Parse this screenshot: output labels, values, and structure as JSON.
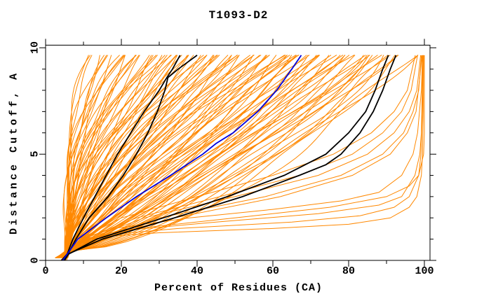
{
  "chart_data": {
    "type": "line",
    "title": "T1093-D2",
    "xlabel": "Percent of Residues (CA)",
    "ylabel": "Distance Cutoff, A",
    "xlim": [
      0,
      100
    ],
    "ylim": [
      0,
      10
    ],
    "x_major_ticks": [
      0,
      20,
      40,
      60,
      80,
      100
    ],
    "x_minor_tick_step": 10,
    "y_major_ticks": [
      0,
      5,
      10
    ],
    "y_minor_tick_step": 1,
    "grid": false,
    "legend": false,
    "tick_style": "outward, mirrored on all four frame sides",
    "colors": {
      "ensemble": "#ff8800",
      "highlight": "#000000",
      "reference": "#0000dd",
      "frame": "#000000",
      "background": "#ffffff"
    },
    "reference_curve": {
      "name": "reference-model-blue",
      "points_d_p": [
        [
          0,
          4.5
        ],
        [
          0.3,
          5.7
        ],
        [
          1,
          8.5
        ],
        [
          2,
          16
        ],
        [
          3,
          24
        ],
        [
          4,
          33
        ],
        [
          5,
          41.5
        ],
        [
          5.5,
          45
        ],
        [
          6,
          49.5
        ],
        [
          7,
          56
        ],
        [
          8,
          61
        ],
        [
          9,
          65
        ],
        [
          9.65,
          67.5
        ]
      ]
    },
    "highlight_curves": [
      {
        "name": "black-model-1",
        "points_d_p": [
          [
            0,
            4.2
          ],
          [
            0.3,
            5.7
          ],
          [
            1,
            7.2
          ],
          [
            2,
            10
          ],
          [
            3,
            13
          ],
          [
            4,
            16
          ],
          [
            5,
            19
          ],
          [
            6,
            22.5
          ],
          [
            7,
            26
          ],
          [
            8,
            30
          ],
          [
            8.6,
            32
          ],
          [
            9,
            33.5
          ],
          [
            9.65,
            35.5
          ]
        ]
      },
      {
        "name": "black-model-2",
        "points_d_p": [
          [
            0,
            4.8
          ],
          [
            0.3,
            5.9
          ],
          [
            1,
            8
          ],
          [
            2,
            11.5
          ],
          [
            3,
            16.5
          ],
          [
            4,
            20.5
          ],
          [
            5,
            24
          ],
          [
            6,
            27
          ],
          [
            7,
            29.5
          ],
          [
            8,
            31.5
          ],
          [
            8.6,
            32.3
          ],
          [
            9,
            35
          ],
          [
            9.65,
            40
          ]
        ]
      },
      {
        "name": "black-model-3",
        "points_d_p": [
          [
            0,
            4.5
          ],
          [
            0.3,
            5.9
          ],
          [
            1,
            15
          ],
          [
            2,
            34
          ],
          [
            3,
            52
          ],
          [
            4,
            67
          ],
          [
            4.5,
            74
          ],
          [
            5,
            78
          ],
          [
            6,
            83
          ],
          [
            7,
            86.5
          ],
          [
            8,
            89
          ],
          [
            9,
            91
          ],
          [
            9.65,
            92.5
          ]
        ]
      },
      {
        "name": "black-model-4",
        "points_d_p": [
          [
            0,
            5
          ],
          [
            0.3,
            6.1
          ],
          [
            1,
            13.5
          ],
          [
            2,
            31
          ],
          [
            3,
            48
          ],
          [
            4,
            63
          ],
          [
            5,
            74
          ],
          [
            6,
            80
          ],
          [
            7,
            84.5
          ],
          [
            8,
            87
          ],
          [
            9,
            89
          ],
          [
            9.65,
            90.5
          ]
        ]
      }
    ],
    "special_curves": [
      {
        "name": "best-model-1",
        "points_d_p": [
          [
            0,
            4
          ],
          [
            0.3,
            5.8
          ],
          [
            0.8,
            8
          ],
          [
            1.1,
            14
          ],
          [
            1.3,
            30
          ],
          [
            1.5,
            60
          ],
          [
            1.7,
            80
          ],
          [
            2,
            91
          ],
          [
            2.5,
            96
          ],
          [
            3,
            98
          ],
          [
            4,
            99.2
          ],
          [
            5,
            99.5
          ],
          [
            7,
            99.7
          ],
          [
            9.65,
            99.8
          ]
        ]
      },
      {
        "name": "best-model-2",
        "points_d_p": [
          [
            0,
            4.5
          ],
          [
            0.3,
            5.9
          ],
          [
            0.9,
            9
          ],
          [
            1.2,
            16
          ],
          [
            1.5,
            35
          ],
          [
            1.8,
            65
          ],
          [
            2.1,
            83
          ],
          [
            2.5,
            92
          ],
          [
            3,
            96
          ],
          [
            4,
            98.5
          ],
          [
            5,
            99.1
          ],
          [
            7,
            99.5
          ],
          [
            9.65,
            99.7
          ]
        ]
      },
      {
        "name": "best-model-3",
        "points_d_p": [
          [
            0,
            5
          ],
          [
            0.3,
            6.1
          ],
          [
            1,
            10
          ],
          [
            1.4,
            20
          ],
          [
            1.8,
            45
          ],
          [
            2.2,
            72
          ],
          [
            2.6,
            88
          ],
          [
            3,
            94
          ],
          [
            4,
            97.5
          ],
          [
            5,
            98.8
          ],
          [
            6,
            99.2
          ],
          [
            9.65,
            99.6
          ]
        ]
      },
      {
        "name": "best-model-4",
        "points_d_p": [
          [
            0,
            4.2
          ],
          [
            0.3,
            5.7
          ],
          [
            1,
            9
          ],
          [
            1.5,
            18
          ],
          [
            2,
            38
          ],
          [
            2.4,
            60
          ],
          [
            2.8,
            78
          ],
          [
            3.2,
            88
          ],
          [
            4,
            94
          ],
          [
            5,
            97
          ],
          [
            6,
            98.2
          ],
          [
            8,
            99.2
          ],
          [
            9.65,
            99.5
          ]
        ]
      },
      {
        "name": "best-model-5",
        "points_d_p": [
          [
            0,
            5.2
          ],
          [
            0.3,
            6
          ],
          [
            1,
            11
          ],
          [
            1.5,
            24
          ],
          [
            2,
            50
          ],
          [
            2.5,
            75
          ],
          [
            3,
            90
          ],
          [
            3.5,
            96
          ],
          [
            4,
            98.5
          ],
          [
            5,
            99.8
          ],
          [
            6,
            100
          ],
          [
            9.65,
            100
          ]
        ]
      },
      {
        "name": "good-model-1",
        "points_d_p": [
          [
            0,
            4
          ],
          [
            0.3,
            5.8
          ],
          [
            1,
            12
          ],
          [
            2,
            30
          ],
          [
            3,
            58
          ],
          [
            4,
            78
          ],
          [
            5,
            89
          ],
          [
            6,
            94.5
          ],
          [
            7,
            97
          ],
          [
            8,
            98.5
          ],
          [
            9.65,
            99.2
          ]
        ]
      },
      {
        "name": "good-model-2",
        "points_d_p": [
          [
            0,
            5
          ],
          [
            0.3,
            6
          ],
          [
            1,
            11
          ],
          [
            2,
            26
          ],
          [
            3,
            50
          ],
          [
            4,
            72
          ],
          [
            5,
            85
          ],
          [
            6,
            92
          ],
          [
            7,
            96
          ],
          [
            8,
            98
          ],
          [
            9.65,
            99
          ]
        ]
      },
      {
        "name": "good-model-3",
        "points_d_p": [
          [
            0,
            4.5
          ],
          [
            0.3,
            5.9
          ],
          [
            1,
            13
          ],
          [
            2,
            34
          ],
          [
            3,
            62
          ],
          [
            4,
            81
          ],
          [
            5,
            91
          ],
          [
            6,
            95.5
          ],
          [
            7,
            97.8
          ],
          [
            9.65,
            99.4
          ]
        ]
      },
      {
        "name": "good-model-4",
        "points_d_p": [
          [
            0,
            5.5
          ],
          [
            0.3,
            6.2
          ],
          [
            1,
            10
          ],
          [
            2,
            24
          ],
          [
            3,
            46
          ],
          [
            4,
            67
          ],
          [
            5,
            81
          ],
          [
            6,
            89
          ],
          [
            7,
            94
          ],
          [
            8,
            96.5
          ],
          [
            9.65,
            98.2
          ]
        ]
      },
      {
        "name": "good-model-5",
        "points_d_p": [
          [
            0,
            4
          ],
          [
            0.3,
            5.7
          ],
          [
            1,
            9
          ],
          [
            2,
            20
          ],
          [
            3,
            40
          ],
          [
            4,
            60
          ],
          [
            5,
            76
          ],
          [
            6,
            86
          ],
          [
            7,
            92
          ],
          [
            8,
            95.5
          ],
          [
            9.65,
            97.6
          ]
        ]
      }
    ],
    "ensemble_curve_params_note": "each entry = [percent_at_10A, shape_exponent]; curves rise from ~5% at 0.3A",
    "ensemble_curves": [
      [
        11,
        4.5
      ],
      [
        12,
        3.8
      ],
      [
        13,
        4.2
      ],
      [
        14,
        3.2
      ],
      [
        15,
        3.6
      ],
      [
        16,
        2.8
      ],
      [
        17,
        3.1
      ],
      [
        18,
        2.5
      ],
      [
        19,
        2.8
      ],
      [
        20,
        2.3
      ],
      [
        21,
        2.6
      ],
      [
        22,
        2.1
      ],
      [
        23,
        2.4
      ],
      [
        24,
        1.95
      ],
      [
        25,
        2.2
      ],
      [
        26,
        1.85
      ],
      [
        27,
        2.05
      ],
      [
        28,
        1.75
      ],
      [
        29,
        1.9
      ],
      [
        30,
        1.65
      ],
      [
        31,
        1.8
      ],
      [
        32,
        1.6
      ],
      [
        33,
        1.72
      ],
      [
        34,
        1.55
      ],
      [
        35,
        1.66
      ],
      [
        36,
        1.5
      ],
      [
        37,
        1.6
      ],
      [
        38,
        1.45
      ],
      [
        39,
        1.55
      ],
      [
        40,
        1.4
      ],
      [
        41,
        1.5
      ],
      [
        42,
        1.35
      ],
      [
        43,
        1.45
      ],
      [
        44,
        1.3
      ],
      [
        45,
        1.4
      ],
      [
        46,
        1.28
      ],
      [
        47,
        1.36
      ],
      [
        48,
        1.25
      ],
      [
        49,
        1.32
      ],
      [
        50,
        1.22
      ],
      [
        51,
        1.28
      ],
      [
        52,
        1.18
      ],
      [
        53,
        1.25
      ],
      [
        54,
        1.15
      ],
      [
        55,
        1.2
      ],
      [
        56,
        1.12
      ],
      [
        57,
        1.18
      ],
      [
        58,
        1.1
      ],
      [
        59,
        1.15
      ],
      [
        60,
        1.05
      ],
      [
        61,
        1.1
      ],
      [
        62,
        1.02
      ],
      [
        63,
        1.08
      ],
      [
        64,
        1.0
      ],
      [
        65,
        1.05
      ],
      [
        66,
        0.97
      ],
      [
        67,
        1.02
      ],
      [
        68,
        0.95
      ],
      [
        69,
        1.0
      ],
      [
        70,
        0.92
      ],
      [
        71,
        0.97
      ],
      [
        72,
        0.9
      ],
      [
        73,
        0.95
      ],
      [
        74,
        0.88
      ],
      [
        75,
        0.92
      ],
      [
        76,
        0.85
      ],
      [
        77,
        0.9
      ],
      [
        78,
        0.83
      ],
      [
        79,
        0.87
      ],
      [
        80,
        0.8
      ],
      [
        81,
        0.85
      ],
      [
        82,
        0.78
      ],
      [
        83,
        0.82
      ],
      [
        84,
        0.75
      ],
      [
        85,
        0.8
      ],
      [
        86,
        0.72
      ],
      [
        87,
        0.77
      ],
      [
        88,
        0.7
      ],
      [
        89,
        0.74
      ],
      [
        90,
        0.67
      ],
      [
        91,
        0.71
      ],
      [
        92,
        0.64
      ],
      [
        93,
        0.68
      ],
      [
        94,
        0.6
      ],
      [
        95,
        0.64
      ],
      [
        96,
        0.58
      ],
      [
        24,
        2.6
      ],
      [
        34,
        2.0
      ],
      [
        44,
        1.6
      ],
      [
        54,
        1.35
      ],
      [
        64,
        1.15
      ],
      [
        74,
        1.0
      ],
      [
        84,
        0.88
      ],
      [
        30,
        2.3
      ],
      [
        50,
        1.5
      ],
      [
        70,
        1.08
      ],
      [
        40,
        1.8
      ],
      [
        60,
        1.28
      ],
      [
        80,
        0.95
      ],
      [
        20,
        3.2
      ],
      [
        88,
        0.82
      ],
      [
        48,
        1.55
      ],
      [
        58,
        1.3
      ],
      [
        68,
        1.12
      ],
      [
        36,
        1.85
      ],
      [
        26,
        2.45
      ]
    ]
  }
}
